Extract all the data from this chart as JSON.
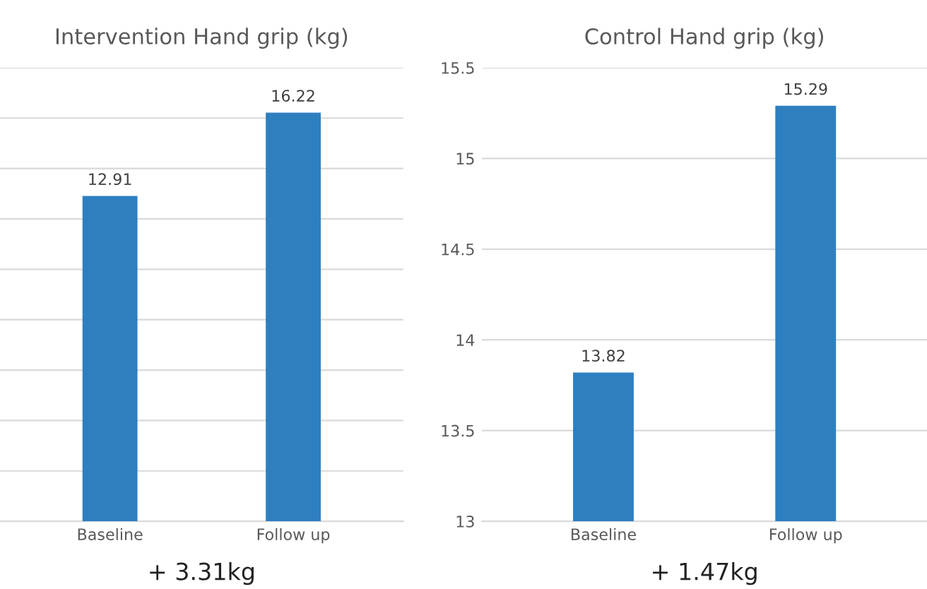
{
  "chart_data": [
    {
      "type": "bar",
      "title": "Intervention Hand grip (kg)",
      "categories": [
        "Baseline",
        "Follow up"
      ],
      "values": [
        12.91,
        16.22
      ],
      "color": "#2e7fc0",
      "ylim": [
        0,
        18
      ],
      "yticks": [
        {
          "value": 0,
          "label": null
        },
        {
          "value": 2,
          "label": null
        },
        {
          "value": 4,
          "label": null
        },
        {
          "value": 6,
          "label": null
        },
        {
          "value": 8,
          "label": null
        },
        {
          "value": 10,
          "label": null
        },
        {
          "value": 12,
          "label": null
        },
        {
          "value": 14,
          "label": null
        },
        {
          "value": 16,
          "label": null
        },
        {
          "value": 18,
          "label": null
        }
      ],
      "tick_labels": "x",
      "grid": "y",
      "data_labels": true,
      "annotations": [
        "+ 3.31kg"
      ]
    },
    {
      "type": "bar",
      "title": "Control Hand grip (kg)",
      "categories": [
        "Baseline",
        "Follow up"
      ],
      "values": [
        13.82,
        15.29
      ],
      "color": "#2e7fc0",
      "ylim": [
        13,
        15.5
      ],
      "yticks": [
        13,
        13.5,
        14,
        14.5,
        15,
        15.5
      ],
      "grid": "y",
      "data_labels": true,
      "annotations": [
        "+ 1.47kg"
      ]
    }
  ]
}
